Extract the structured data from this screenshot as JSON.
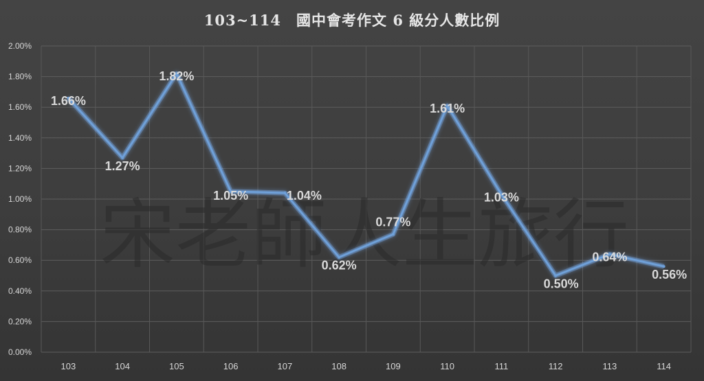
{
  "chart_data": {
    "type": "line",
    "title": "103~114　國中會考作文 6 級分人數比例",
    "categories": [
      "103",
      "104",
      "105",
      "106",
      "107",
      "108",
      "109",
      "110",
      "111",
      "112",
      "113",
      "114"
    ],
    "series": [
      {
        "values": [
          1.66,
          1.27,
          1.82,
          1.05,
          1.04,
          0.62,
          0.77,
          1.61,
          1.03,
          0.5,
          0.64,
          0.56
        ]
      }
    ],
    "data_labels": [
      "1.66%",
      "1.27%",
      "1.82%",
      "1.05%",
      "1.04%",
      "0.62%",
      "0.77%",
      "1.61%",
      "1.03%",
      "0.50%",
      "0.64%",
      "0.56%"
    ],
    "y_ticks": [
      "0.00%",
      "0.20%",
      "0.40%",
      "0.60%",
      "0.80%",
      "1.00%",
      "1.20%",
      "1.40%",
      "1.60%",
      "1.80%",
      "2.00%"
    ],
    "ylim": [
      0,
      2.0
    ],
    "grid": true,
    "legend": "none",
    "line_color": "#6fa0d8"
  },
  "watermark": "宋老師人生旅行"
}
